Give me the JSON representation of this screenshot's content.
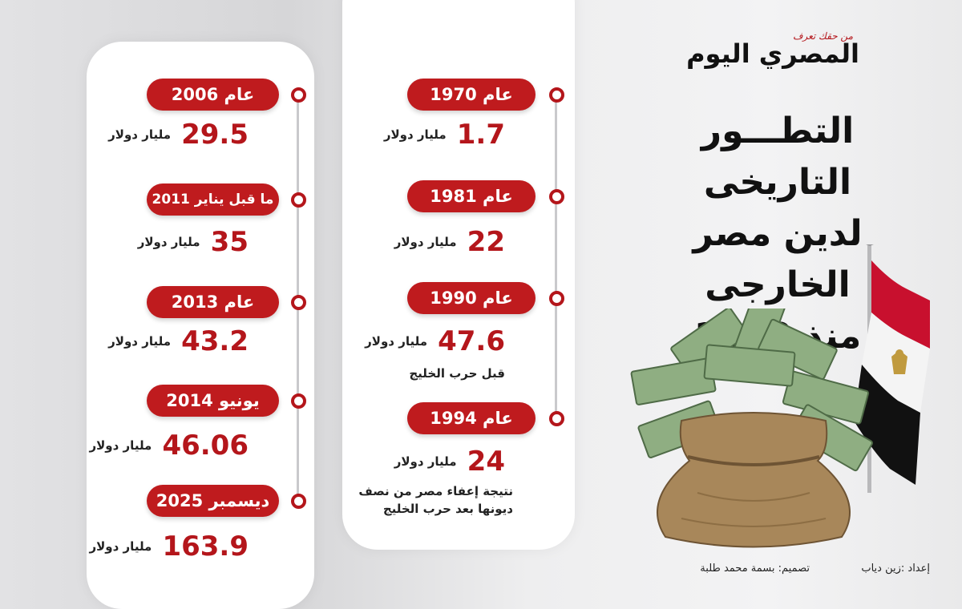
{
  "brand": {
    "name": "المصري اليوم",
    "tagline": "من حقك تعرف"
  },
  "title": {
    "line1": "التطـــور التاريخى",
    "line2": "لدين مصر الخارجى",
    "line3": "منذ 1970"
  },
  "timeline_mid": [
    {
      "label": "عام 1970",
      "value": "1.7",
      "unit": "مليار دولار",
      "note": ""
    },
    {
      "label": "عام 1981",
      "value": "22",
      "unit": "مليار دولار",
      "note": ""
    },
    {
      "label": "عام 1990",
      "value": "47.6",
      "unit": "مليار دولار",
      "note": "قبل حرب الخليج"
    },
    {
      "label": "عام 1994",
      "value": "24",
      "unit": "مليار دولار",
      "note": "نتيجة إعفاء مصر من نصف ديونها بعد حرب الخليج"
    }
  ],
  "timeline_left": [
    {
      "label": "عام 2006",
      "value": "29.5",
      "unit": "مليار دولار"
    },
    {
      "label": "ما قبل يناير 2011",
      "value": "35",
      "unit": "مليار دولار"
    },
    {
      "label": "عام 2013",
      "value": "43.2",
      "unit": "مليار دولار"
    },
    {
      "label": "يونيو 2014",
      "value": "46.06",
      "unit": "مليار دولار"
    },
    {
      "label": "ديسمبر 2025",
      "value": "163.9",
      "unit": "مليار دولار"
    }
  ],
  "credits": {
    "prepared": "إعداد :زين دياب",
    "design": "تصميم: بسمة محمد طلبة"
  },
  "colors": {
    "accent": "#bf1b1e",
    "panel": "#ffffff",
    "flag_red": "#c8102e",
    "flag_black": "#111111",
    "eagle": "#c09a3e"
  },
  "icons": [
    "egypt-flag-icon",
    "money-bag-icon",
    "timeline-dot-icon"
  ]
}
